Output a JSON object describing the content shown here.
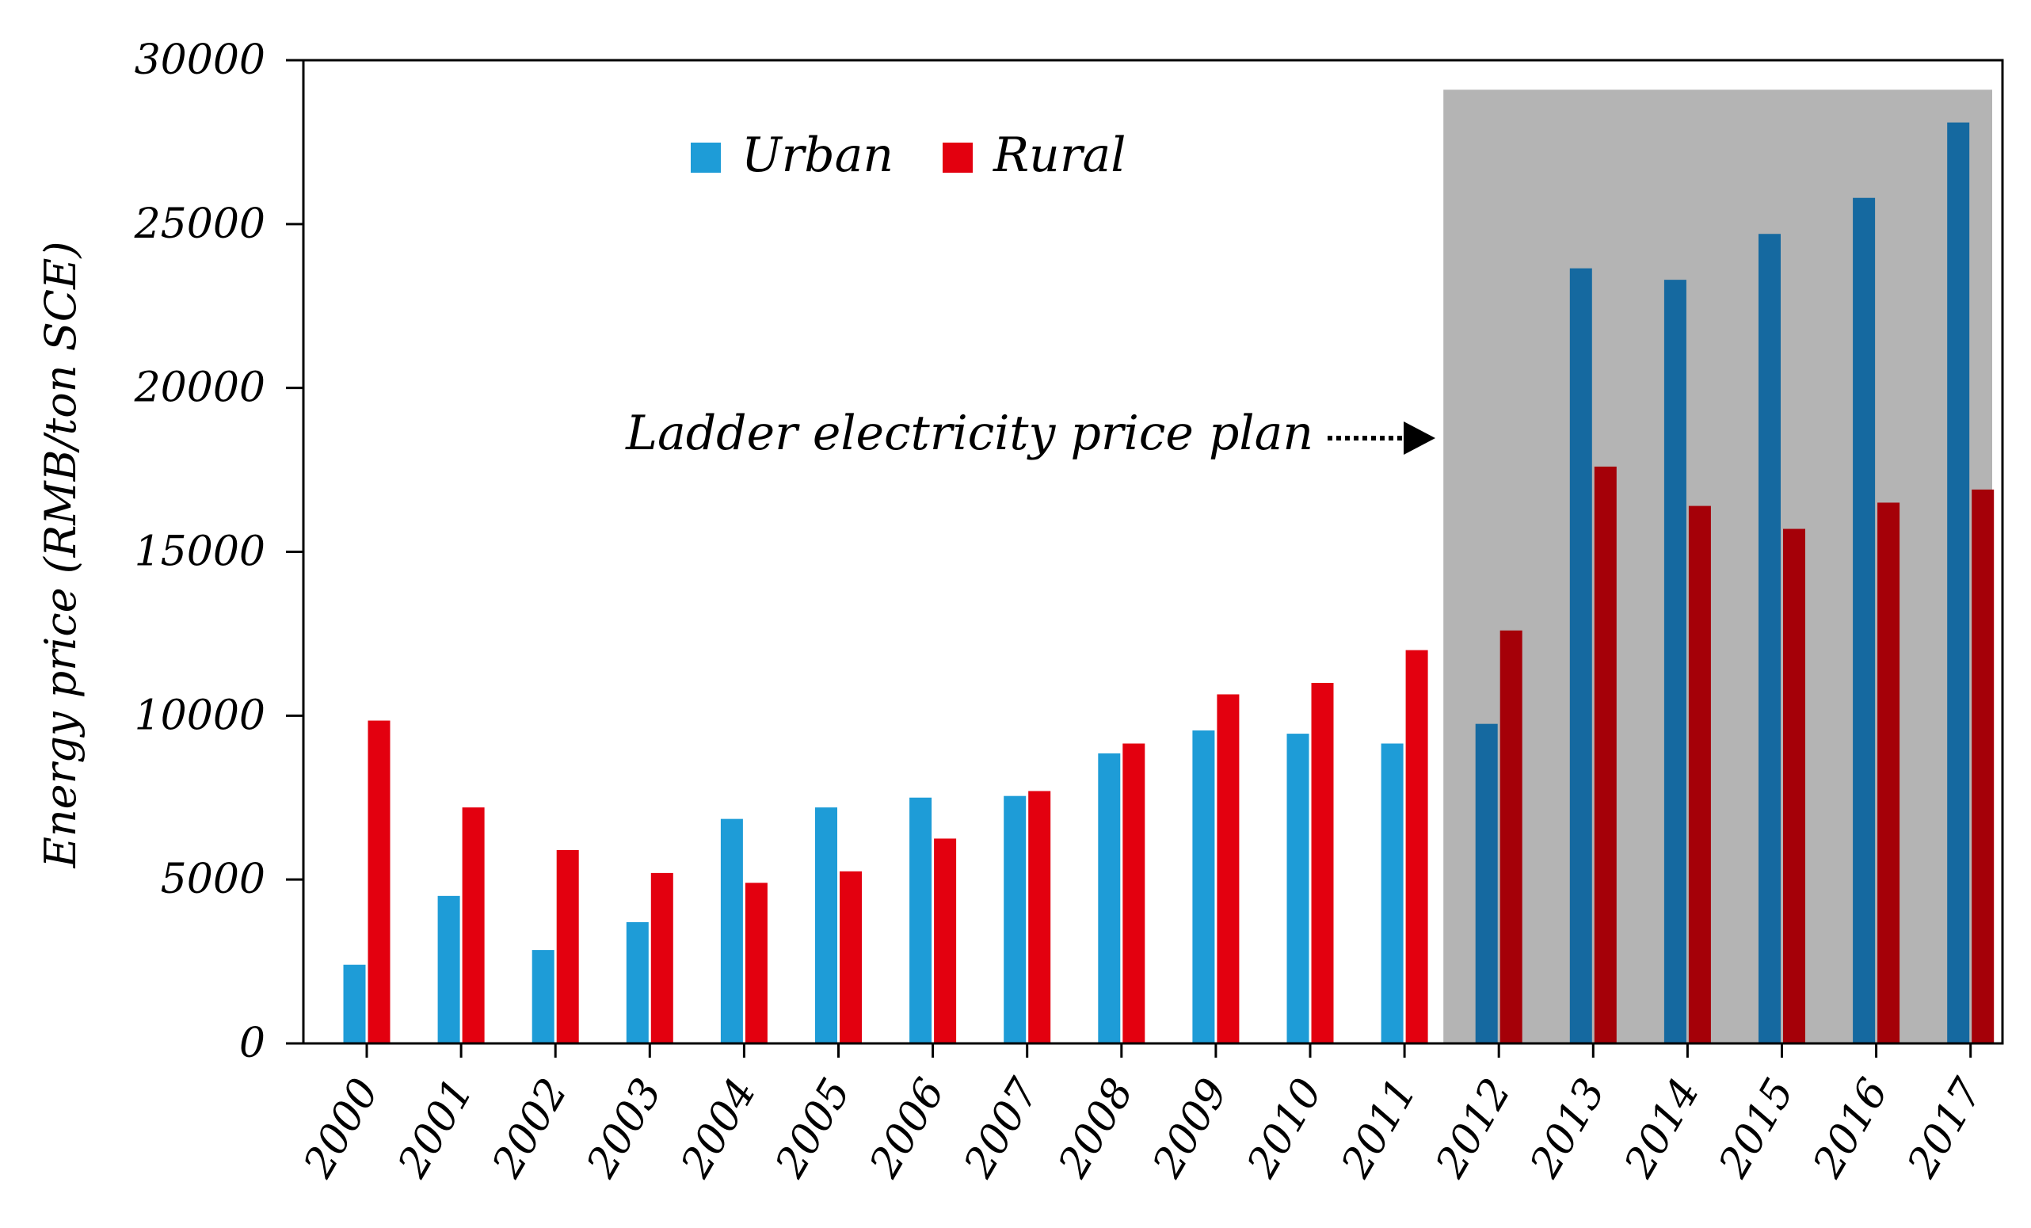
{
  "chart_data": {
    "type": "bar",
    "title": "",
    "xlabel": "",
    "ylabel": "Energy price (RMB/ton SCE)",
    "ylim": [
      0,
      30000
    ],
    "yticks": [
      0,
      5000,
      10000,
      15000,
      20000,
      25000,
      30000
    ],
    "grid": false,
    "legend_position": "top-left",
    "categories": [
      "2000",
      "2001",
      "2002",
      "2003",
      "2004",
      "2005",
      "2006",
      "2007",
      "2008",
      "2009",
      "2010",
      "2011",
      "2012",
      "2013",
      "2014",
      "2015",
      "2016",
      "2017"
    ],
    "series": [
      {
        "name": "Urban",
        "color": "#1e9cd7",
        "shaded_color": "#1569a0",
        "values": [
          2400,
          4500,
          2850,
          3700,
          6850,
          7200,
          7500,
          7550,
          8850,
          9550,
          9450,
          9150,
          9750,
          23650,
          23300,
          24700,
          25800,
          28100
        ]
      },
      {
        "name": "Rural",
        "color": "#e3000f",
        "shaded_color": "#a50008",
        "values": [
          9850,
          7200,
          5900,
          5200,
          4900,
          5250,
          6250,
          7700,
          9150,
          10650,
          11000,
          12000,
          12600,
          17600,
          16400,
          15700,
          16500,
          16900
        ]
      }
    ],
    "shaded_region": {
      "from": "2012",
      "to": "2017",
      "color": "#b4b4b4",
      "top_value": 29100
    },
    "annotation": {
      "text": "Ladder electricity price plan",
      "arrow_to": "2012"
    }
  }
}
